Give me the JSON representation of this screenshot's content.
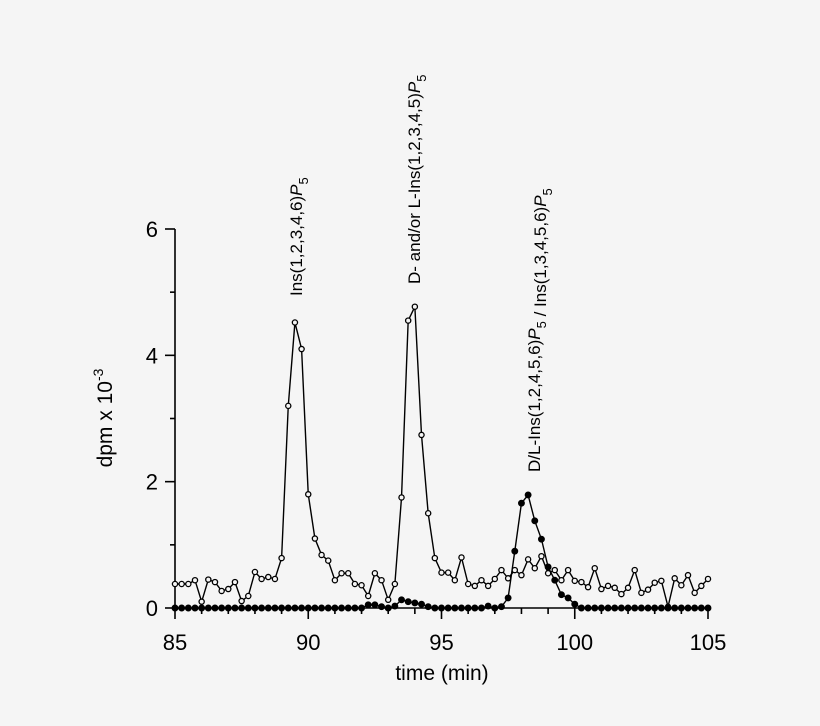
{
  "chart_data": {
    "type": "line",
    "title": "",
    "xlabel": "time (min)",
    "ylabel": "dpm x 10",
    "ylabel_superscript": "-3",
    "xlim": [
      85,
      105
    ],
    "ylim": [
      0,
      6
    ],
    "x_ticks": [
      85,
      90,
      95,
      100,
      105
    ],
    "x_tick_labels": [
      "85",
      "90",
      "95",
      "100",
      "105"
    ],
    "x_minor_step": 1,
    "y_ticks": [
      0,
      2,
      4,
      6
    ],
    "y_tick_labels": [
      "0",
      "2",
      "4",
      "6"
    ],
    "y_minor_ticks": [
      1,
      3,
      5
    ],
    "grid": false,
    "legend": null,
    "x_start": 85,
    "x_step": 0.25,
    "series": [
      {
        "name": "open circles",
        "marker": "open-circle",
        "color": "#000000",
        "values": [
          0.38,
          0.38,
          0.38,
          0.44,
          0.1,
          0.45,
          0.41,
          0.27,
          0.3,
          0.41,
          0.11,
          0.19,
          0.57,
          0.46,
          0.49,
          0.46,
          0.79,
          3.2,
          4.52,
          4.1,
          1.8,
          1.1,
          0.84,
          0.75,
          0.44,
          0.55,
          0.55,
          0.38,
          0.36,
          0.19,
          0.55,
          0.44,
          0.13,
          0.38,
          1.75,
          4.55,
          4.77,
          2.74,
          1.5,
          0.79,
          0.56,
          0.56,
          0.44,
          0.8,
          0.38,
          0.35,
          0.44,
          0.35,
          0.46,
          0.6,
          0.47,
          0.6,
          0.52,
          0.77,
          0.63,
          0.82,
          0.55,
          0.6,
          0.44,
          0.6,
          0.43,
          0.41,
          0.33,
          0.63,
          0.3,
          0.35,
          0.32,
          0.22,
          0.32,
          0.6,
          0.24,
          0.29,
          0.4,
          0.43,
          0.02,
          0.47,
          0.36,
          0.52,
          0.24,
          0.35,
          0.46
        ]
      },
      {
        "name": "filled circles",
        "marker": "filled-circle",
        "color": "#000000",
        "values": [
          0,
          0,
          0,
          0,
          0,
          0,
          0,
          0,
          0,
          0,
          0,
          0,
          0,
          0,
          0,
          0,
          0,
          0,
          0,
          0,
          0,
          0,
          0,
          0,
          0,
          0,
          0,
          0,
          0,
          0.05,
          0.05,
          0.02,
          0,
          0.03,
          0.13,
          0.1,
          0.08,
          0.06,
          0.02,
          0,
          0,
          0,
          0,
          0,
          0,
          0,
          0,
          0.03,
          0,
          0.02,
          0.16,
          0.9,
          1.66,
          1.79,
          1.38,
          1.09,
          0.65,
          0.44,
          0.21,
          0.16,
          0.06,
          0,
          0,
          0,
          0,
          0,
          0,
          0,
          0,
          0,
          0,
          0,
          0,
          0,
          0,
          0,
          0,
          0,
          0,
          0,
          0
        ]
      }
    ],
    "annotations": [
      {
        "text": "Ins(1,2,3,4,6)P",
        "subscript": "5",
        "x": 89.5,
        "rotation": -90
      },
      {
        "text": "D- and/or L-Ins(1,2,3,4,5)P",
        "subscript": "5",
        "x": 94.0,
        "rotation": -90
      },
      {
        "text": "D/L-Ins(1,2,4,5,6)P",
        "subscript": "5",
        "text2": " / Ins(1,3,4,5,6)P",
        "subscript2": "5",
        "x": 98.25,
        "rotation": -90
      }
    ]
  }
}
